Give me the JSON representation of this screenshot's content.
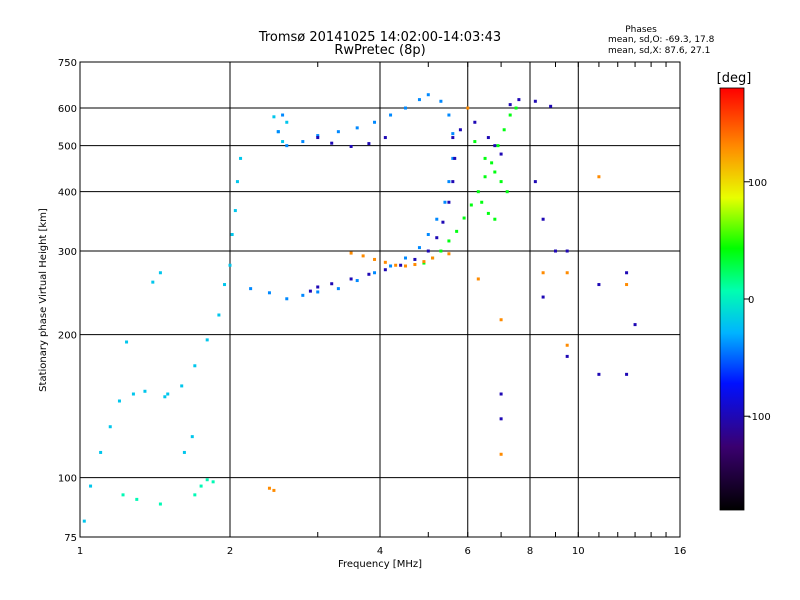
{
  "chart_data": {
    "type": "scatter",
    "title": "Tromsø 20141025 14:02:00-14:03:43",
    "subtitle": "RwPretec (8p)",
    "stats": {
      "heading": "Phases",
      "line_o": "mean, sd,O: -69.3, 17.8",
      "line_x": "mean, sd,X:  87.6, 27.1"
    },
    "xlabel": "Frequency [MHz]",
    "ylabel": "Stationary phase Virtual Height [km]",
    "x_scale": "log",
    "y_scale": "log",
    "xlim": [
      1,
      16
    ],
    "ylim": [
      75,
      750
    ],
    "x_ticks": [
      1,
      2,
      4,
      6,
      8,
      10,
      16
    ],
    "x_tick_labels": [
      "1",
      "2",
      "4",
      "6",
      "8",
      "10",
      "16"
    ],
    "y_ticks": [
      75,
      100,
      200,
      300,
      400,
      500,
      600,
      750
    ],
    "y_tick_labels": [
      "75",
      "100",
      "200",
      "300",
      "400",
      "500",
      "600",
      "750"
    ],
    "grid": true,
    "colorbar": {
      "label": "[deg]",
      "range": [
        -180,
        180
      ],
      "ticks": [
        100,
        0,
        -100
      ],
      "tick_labels": [
        "100",
        "0",
        "-100"
      ]
    },
    "series": [
      {
        "color_deg": -20,
        "points": [
          [
            1.02,
            81
          ],
          [
            1.05,
            96
          ],
          [
            1.1,
            113
          ],
          [
            1.15,
            128
          ],
          [
            1.2,
            145
          ],
          [
            1.28,
            150
          ],
          [
            1.35,
            152
          ],
          [
            1.5,
            150
          ],
          [
            1.6,
            156
          ],
          [
            1.7,
            172
          ],
          [
            1.8,
            195
          ],
          [
            1.9,
            220
          ],
          [
            1.95,
            255
          ],
          [
            2.0,
            280
          ],
          [
            2.02,
            325
          ],
          [
            2.05,
            365
          ],
          [
            2.07,
            420
          ],
          [
            2.1,
            470
          ],
          [
            1.62,
            113
          ],
          [
            1.68,
            122
          ],
          [
            1.4,
            258
          ],
          [
            1.45,
            270
          ],
          [
            1.48,
            148
          ],
          [
            1.24,
            193
          ],
          [
            2.5,
            535
          ],
          [
            2.55,
            510
          ],
          [
            2.6,
            560
          ],
          [
            2.45,
            575
          ]
        ]
      },
      {
        "color_deg": -40,
        "points": [
          [
            2.2,
            250
          ],
          [
            2.4,
            245
          ],
          [
            2.6,
            238
          ],
          [
            2.8,
            242
          ],
          [
            3.0,
            246
          ],
          [
            3.3,
            250
          ],
          [
            3.6,
            260
          ],
          [
            3.9,
            270
          ],
          [
            4.2,
            279
          ],
          [
            4.5,
            290
          ],
          [
            4.8,
            305
          ],
          [
            5.0,
            325
          ],
          [
            5.2,
            350
          ],
          [
            5.4,
            380
          ],
          [
            5.5,
            420
          ],
          [
            5.6,
            470
          ],
          [
            5.6,
            530
          ],
          [
            5.5,
            580
          ],
          [
            5.3,
            620
          ],
          [
            5.0,
            640
          ],
          [
            4.8,
            625
          ],
          [
            4.5,
            600
          ],
          [
            4.2,
            580
          ],
          [
            3.9,
            560
          ],
          [
            3.6,
            545
          ],
          [
            3.3,
            535
          ],
          [
            3.0,
            525
          ],
          [
            2.8,
            510
          ],
          [
            2.6,
            500
          ],
          [
            2.5,
            535
          ],
          [
            2.55,
            580
          ]
        ]
      },
      {
        "color_deg": -100,
        "points": [
          [
            2.9,
            247
          ],
          [
            3.0,
            252
          ],
          [
            3.2,
            256
          ],
          [
            3.5,
            262
          ],
          [
            3.8,
            268
          ],
          [
            4.1,
            274
          ],
          [
            4.4,
            280
          ],
          [
            4.7,
            288
          ],
          [
            5.0,
            300
          ],
          [
            5.2,
            320
          ],
          [
            5.35,
            345
          ],
          [
            5.5,
            380
          ],
          [
            5.6,
            420
          ],
          [
            5.65,
            470
          ],
          [
            5.6,
            520
          ],
          [
            3.0,
            520
          ],
          [
            3.2,
            506
          ],
          [
            3.5,
            498
          ],
          [
            3.8,
            505
          ],
          [
            4.1,
            520
          ],
          [
            5.8,
            540
          ],
          [
            6.2,
            560
          ],
          [
            6.6,
            520
          ],
          [
            6.8,
            500
          ],
          [
            7.0,
            480
          ],
          [
            7.3,
            610
          ],
          [
            7.6,
            625
          ],
          [
            8.2,
            620
          ],
          [
            8.8,
            605
          ],
          [
            8.2,
            420
          ],
          [
            8.5,
            350
          ],
          [
            9.0,
            300
          ],
          [
            9.5,
            300
          ],
          [
            11,
            255
          ],
          [
            12.5,
            270
          ],
          [
            13,
            210
          ],
          [
            11,
            165
          ],
          [
            12.5,
            165
          ],
          [
            7.0,
            150
          ],
          [
            7.0,
            133
          ],
          [
            8.5,
            240
          ],
          [
            9.5,
            180
          ]
        ]
      },
      {
        "color_deg": 40,
        "points": [
          [
            4.9,
            283
          ],
          [
            5.1,
            290
          ],
          [
            5.3,
            300
          ],
          [
            5.5,
            315
          ],
          [
            5.7,
            330
          ],
          [
            5.9,
            352
          ],
          [
            6.1,
            375
          ],
          [
            6.3,
            400
          ],
          [
            6.5,
            430
          ],
          [
            6.7,
            460
          ],
          [
            6.9,
            500
          ],
          [
            7.1,
            540
          ],
          [
            7.3,
            580
          ],
          [
            6.2,
            510
          ],
          [
            6.5,
            470
          ],
          [
            6.8,
            440
          ],
          [
            7.0,
            420
          ],
          [
            7.2,
            400
          ],
          [
            6.4,
            380
          ],
          [
            6.6,
            360
          ],
          [
            6.8,
            350
          ],
          [
            7.5,
            600
          ]
        ]
      },
      {
        "color_deg": 130,
        "points": [
          [
            3.5,
            297
          ],
          [
            3.7,
            293
          ],
          [
            3.9,
            288
          ],
          [
            4.1,
            284
          ],
          [
            4.3,
            280
          ],
          [
            4.5,
            279
          ],
          [
            4.7,
            281
          ],
          [
            4.9,
            285
          ],
          [
            5.1,
            290
          ],
          [
            5.5,
            296
          ],
          [
            6.3,
            262
          ],
          [
            7.0,
            215
          ],
          [
            7.0,
            112
          ],
          [
            9.5,
            190
          ],
          [
            12.5,
            255
          ],
          [
            8.5,
            270
          ],
          [
            2.4,
            95
          ],
          [
            2.45,
            94
          ],
          [
            6.0,
            600
          ],
          [
            9.5,
            270
          ],
          [
            11,
            430
          ]
        ]
      },
      {
        "color_deg": 5,
        "points": [
          [
            1.7,
            92
          ],
          [
            1.75,
            96
          ],
          [
            1.8,
            99
          ],
          [
            1.85,
            98
          ],
          [
            1.22,
            92
          ],
          [
            1.3,
            90
          ],
          [
            1.45,
            88
          ]
        ]
      }
    ]
  }
}
